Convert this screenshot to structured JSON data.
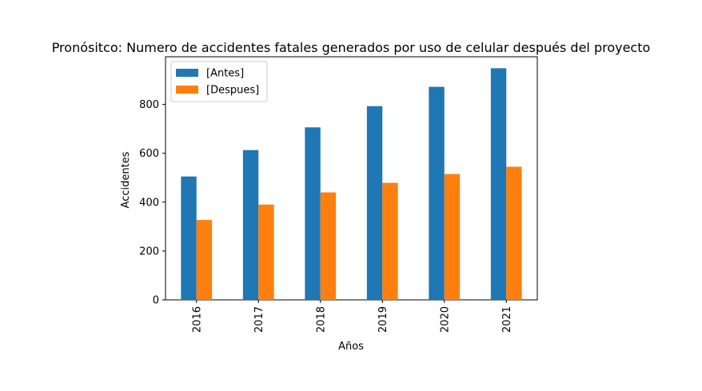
{
  "chart_data": {
    "type": "bar",
    "title": "Pronósitco: Numero de accidentes fatales generados por uso de celular después del proyecto",
    "xlabel": "Años",
    "ylabel": "Accidentes",
    "categories": [
      "2016",
      "2017",
      "2018",
      "2019",
      "2020",
      "2021"
    ],
    "series": [
      {
        "name": "[Antes]",
        "color": "#1f77b4",
        "values": [
          505,
          613,
          706,
          793,
          872,
          948
        ]
      },
      {
        "name": "[Despues]",
        "color": "#ff7f0e",
        "values": [
          327,
          390,
          440,
          479,
          515,
          545
        ]
      }
    ],
    "ylim": [
      0,
      995
    ],
    "yticks": [
      0,
      200,
      400,
      600,
      800
    ],
    "legend_position": "upper-left",
    "grid": false
  }
}
